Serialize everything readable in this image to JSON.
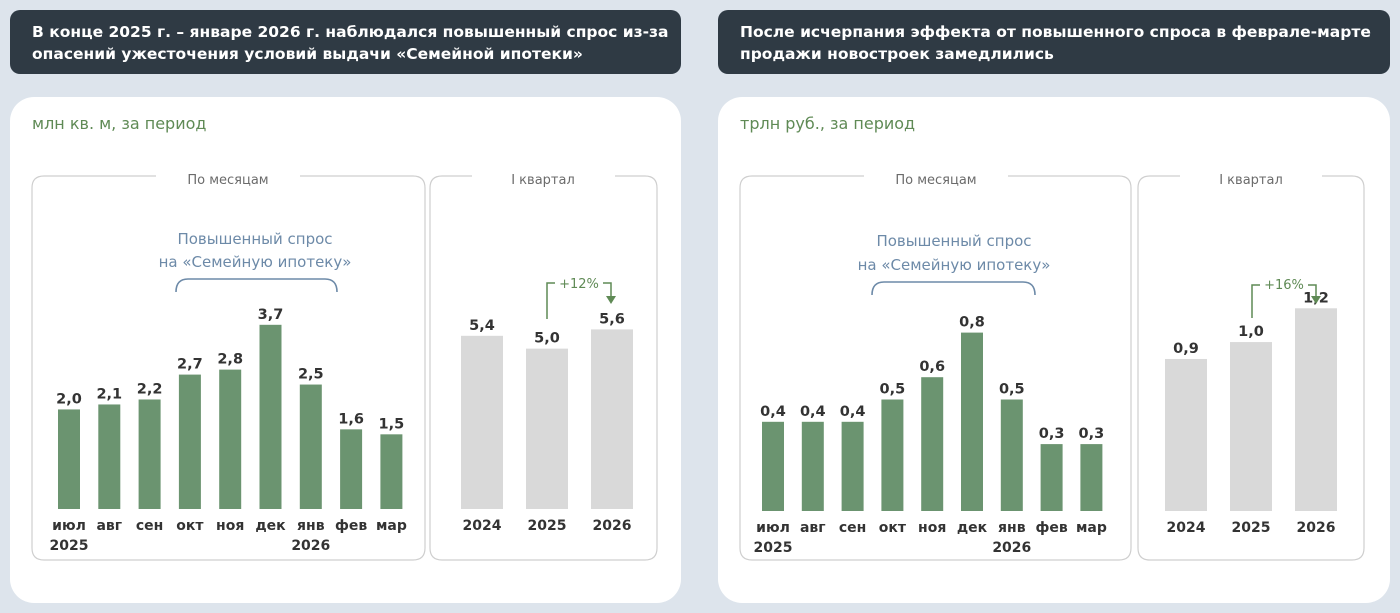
{
  "left": {
    "header": {
      "line1": "В конце 2025 г. – январе 2026 г. наблюдался повышенный спрос из-за",
      "line2": "опасений ужесточения условий выдачи «Семейной ипотеки»"
    },
    "unit": "млн кв. м, за период",
    "monthly_box_label": "По месяцам",
    "quarter_box_label": "I квартал",
    "annotation": [
      "Повышенный спрос",
      "на «Семейную ипотеку»"
    ],
    "growth_label": "+12%"
  },
  "right": {
    "header": {
      "line1": "После исчерпания эффекта от повышенного спроса в феврале-марте",
      "line2": "продажи новостроек замедлились"
    },
    "unit": "трлн руб., за период",
    "monthly_box_label": "По месяцам",
    "quarter_box_label": "I квартал",
    "annotation": [
      "Повышенный спрос",
      "на «Семейную ипотеку»"
    ],
    "growth_label": "+16%"
  },
  "colors": {
    "monthly_bar": "#6b9470",
    "quarter_bar": "#d9d9d9",
    "header_bg": "#2f3a44",
    "accent_text": "#5f8a55"
  },
  "chart_data": [
    {
      "type": "bar",
      "title": "",
      "ylabel": "млн кв. м, за период",
      "group": "По месяцам",
      "categories": [
        "июл",
        "авг",
        "сен",
        "окт",
        "ноя",
        "дек",
        "янв",
        "фев",
        "мар"
      ],
      "year_labels": [
        "2025",
        "",
        "",
        "",
        "",
        "",
        "2026",
        "",
        ""
      ],
      "values": [
        2.0,
        2.1,
        2.2,
        2.7,
        2.8,
        3.7,
        2.5,
        1.6,
        1.5
      ],
      "value_labels": [
        "2,0",
        "2,1",
        "2,2",
        "2,7",
        "2,8",
        "3,7",
        "2,5",
        "1,6",
        "1,5"
      ],
      "ylim": [
        0,
        4.6
      ]
    },
    {
      "type": "bar",
      "title": "",
      "ylabel": "млн кв. м, за период",
      "group": "I квартал",
      "categories": [
        "2024",
        "2025",
        "2026"
      ],
      "values": [
        5.4,
        5.0,
        5.6
      ],
      "value_labels": [
        "5,4",
        "5,0",
        "5,6"
      ],
      "ylim": [
        0,
        7.14
      ]
    },
    {
      "type": "bar",
      "title": "",
      "ylabel": "трлн руб., за период",
      "group": "По месяцам",
      "categories": [
        "июл",
        "авг",
        "сен",
        "окт",
        "ноя",
        "дек",
        "янв",
        "фев",
        "мар"
      ],
      "year_labels": [
        "2025",
        "",
        "",
        "",
        "",
        "",
        "2026",
        "",
        ""
      ],
      "values": [
        0.4,
        0.4,
        0.4,
        0.5,
        0.6,
        0.8,
        0.5,
        0.3,
        0.3
      ],
      "value_labels": [
        "0,4",
        "0,4",
        "0,4",
        "0,5",
        "0,6",
        "0,8",
        "0,5",
        "0,3",
        "0,3"
      ],
      "ylim": [
        0,
        1.0
      ]
    },
    {
      "type": "bar",
      "title": "",
      "ylabel": "трлн руб., за период",
      "group": "I квартал",
      "categories": [
        "2024",
        "2025",
        "2026"
      ],
      "values": [
        0.9,
        1.0,
        1.2
      ],
      "value_labels": [
        "0,9",
        "1,0",
        "1,2"
      ],
      "ylim": [
        0,
        1.32
      ]
    }
  ]
}
